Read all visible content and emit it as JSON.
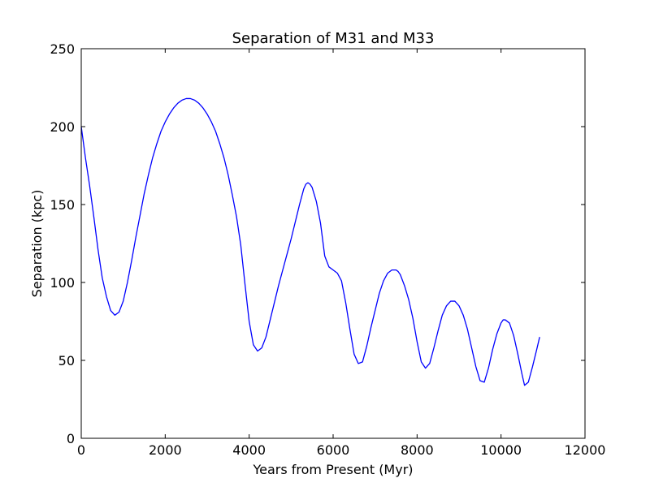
{
  "chart_data": {
    "type": "line",
    "title": "Separation of M31 and M33",
    "xlabel": "Years from Present (Myr)",
    "ylabel": "Separation (kpc)",
    "xlim": [
      0,
      12000
    ],
    "ylim": [
      0,
      250
    ],
    "xticks": [
      0,
      2000,
      4000,
      6000,
      8000,
      10000,
      12000
    ],
    "yticks": [
      0,
      50,
      100,
      150,
      200,
      250
    ],
    "grid": false,
    "series": [
      {
        "color": "#0000ff",
        "x": [
          0,
          100,
          200,
          300,
          400,
          500,
          600,
          700,
          800,
          900,
          1000,
          1100,
          1200,
          1300,
          1400,
          1500,
          1600,
          1700,
          1800,
          1900,
          2000,
          2100,
          2200,
          2300,
          2400,
          2500,
          2600,
          2700,
          2800,
          2900,
          3000,
          3100,
          3200,
          3300,
          3400,
          3500,
          3600,
          3700,
          3800,
          3900,
          4000,
          4100,
          4200,
          4300,
          4400,
          4500,
          4600,
          4700,
          4800,
          4900,
          5000,
          5100,
          5200,
          5300,
          5350,
          5400,
          5450,
          5500,
          5600,
          5700,
          5800,
          5900,
          6000,
          6100,
          6200,
          6300,
          6400,
          6500,
          6600,
          6700,
          6800,
          6900,
          7000,
          7100,
          7200,
          7300,
          7400,
          7500,
          7550,
          7600,
          7700,
          7800,
          7900,
          8000,
          8100,
          8200,
          8300,
          8400,
          8500,
          8600,
          8700,
          8800,
          8900,
          9000,
          9100,
          9200,
          9300,
          9400,
          9500,
          9600,
          9700,
          9800,
          9900,
          10000,
          10050,
          10100,
          10200,
          10300,
          10400,
          10500,
          10560,
          10650,
          10750,
          10850,
          10920
        ],
        "y": [
          200,
          180,
          162,
          142,
          121,
          103,
          91,
          82,
          79,
          81,
          88,
          100,
          114,
          129,
          143,
          157,
          169,
          180,
          189,
          197,
          203,
          208,
          212,
          215,
          217,
          218,
          218,
          217,
          215,
          212,
          208,
          203,
          197,
          189,
          180,
          169,
          156,
          142,
          124,
          99,
          75,
          60,
          56,
          58,
          65,
          76,
          87,
          98,
          108,
          118,
          128,
          139,
          150,
          160,
          163,
          164,
          163,
          161,
          152,
          138,
          117,
          110,
          108,
          106,
          101,
          87,
          70,
          54,
          48,
          49,
          59,
          71,
          82,
          93,
          101,
          106,
          108,
          108,
          107,
          105,
          98,
          89,
          77,
          62,
          49,
          45,
          48,
          58,
          69,
          79,
          85,
          88,
          88,
          85,
          79,
          70,
          58,
          46,
          37,
          36,
          45,
          57,
          67,
          74,
          76,
          76,
          74,
          66,
          54,
          41,
          34,
          36,
          46,
          57,
          65
        ]
      }
    ]
  }
}
